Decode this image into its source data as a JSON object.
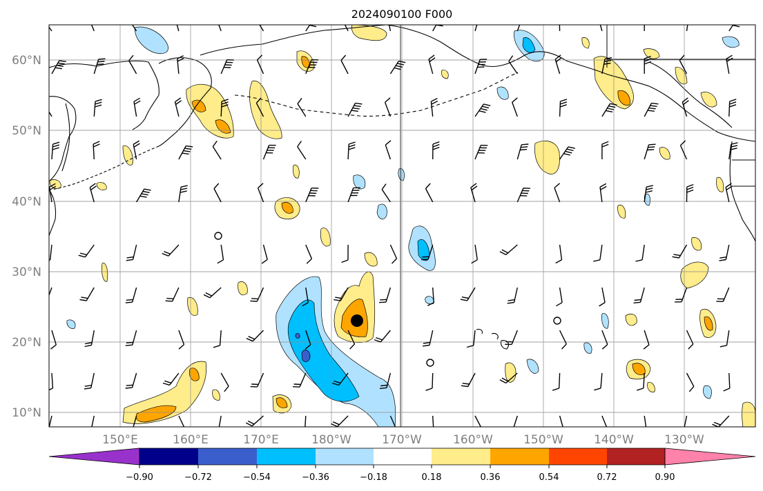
{
  "title": "2024090100 F000",
  "latitude_labels": [
    "60°N",
    "50°N",
    "40°N",
    "30°N",
    "20°N",
    "10°N"
  ],
  "longitude_labels": [
    "150°E",
    "160°E",
    "170°E",
    "180°W",
    "170°W",
    "160°W",
    "150°W",
    "140°W",
    "130°W"
  ],
  "colorbar": {
    "colors": [
      "#9932cc",
      "#00008b",
      "#3a5fcd",
      "#00bfff",
      "#b0e2ff",
      "#ffffff",
      "#ffec8b",
      "#ffa500",
      "#ff4500",
      "#b22222",
      "#ff82ab"
    ],
    "tick_labels": [
      "−0.90",
      "−0.72",
      "−0.54",
      "−0.36",
      "−0.18",
      "0.18",
      "0.36",
      "0.54",
      "0.72",
      "0.90"
    ]
  },
  "map": {
    "extent": {
      "lon_min": 140,
      "lon_max": 240,
      "lat_min": 8,
      "lat_max": 65
    }
  }
}
